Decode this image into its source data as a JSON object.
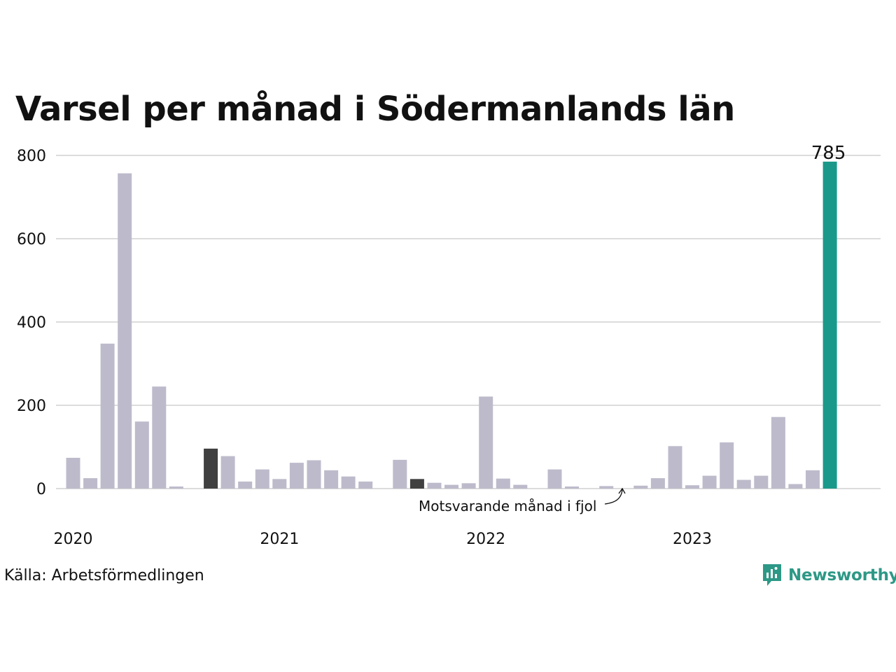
{
  "title": "Varsel per månad i Södermanlands län",
  "source": "Källa: Arbetsförmedlingen",
  "brand": "Newsworthy",
  "annotation": "Motsvarande månad i fjol",
  "colors": {
    "normal": "#bdbbcb",
    "same_month_prev": "#404040",
    "highlight": "#1a998a",
    "grid": "#dcdcdc",
    "brand": "#2d9886"
  },
  "chart_data": {
    "type": "bar",
    "ylim": [
      0,
      800
    ],
    "yticks": [
      0,
      200,
      400,
      600,
      800
    ],
    "xtick_labels": [
      "2020",
      "2021",
      "2022",
      "2023"
    ],
    "categories": [
      "2020-01",
      "2020-02",
      "2020-03",
      "2020-04",
      "2020-05",
      "2020-06",
      "2020-07",
      "2020-08",
      "2020-09",
      "2020-10",
      "2020-11",
      "2020-12",
      "2021-01",
      "2021-02",
      "2021-03",
      "2021-04",
      "2021-05",
      "2021-06",
      "2021-07",
      "2021-08",
      "2021-09",
      "2021-10",
      "2021-11",
      "2021-12",
      "2022-01",
      "2022-02",
      "2022-03",
      "2022-04",
      "2022-05",
      "2022-06",
      "2022-07",
      "2022-08",
      "2022-09",
      "2022-10",
      "2022-11",
      "2022-12",
      "2023-01",
      "2023-02",
      "2023-03",
      "2023-04",
      "2023-05",
      "2023-06",
      "2023-07",
      "2023-08",
      "2023-09"
    ],
    "values": [
      74,
      25,
      348,
      757,
      161,
      245,
      5,
      0,
      96,
      78,
      17,
      46,
      23,
      62,
      68,
      44,
      29,
      17,
      0,
      69,
      23,
      14,
      9,
      13,
      221,
      24,
      9,
      0,
      46,
      5,
      0,
      6,
      0,
      7,
      25,
      102,
      8,
      31,
      111,
      21,
      31,
      172,
      11,
      44,
      785
    ],
    "highlight_index": 44,
    "highlight_label": "785",
    "dark_indices": [
      8,
      20
    ],
    "grid": true
  }
}
